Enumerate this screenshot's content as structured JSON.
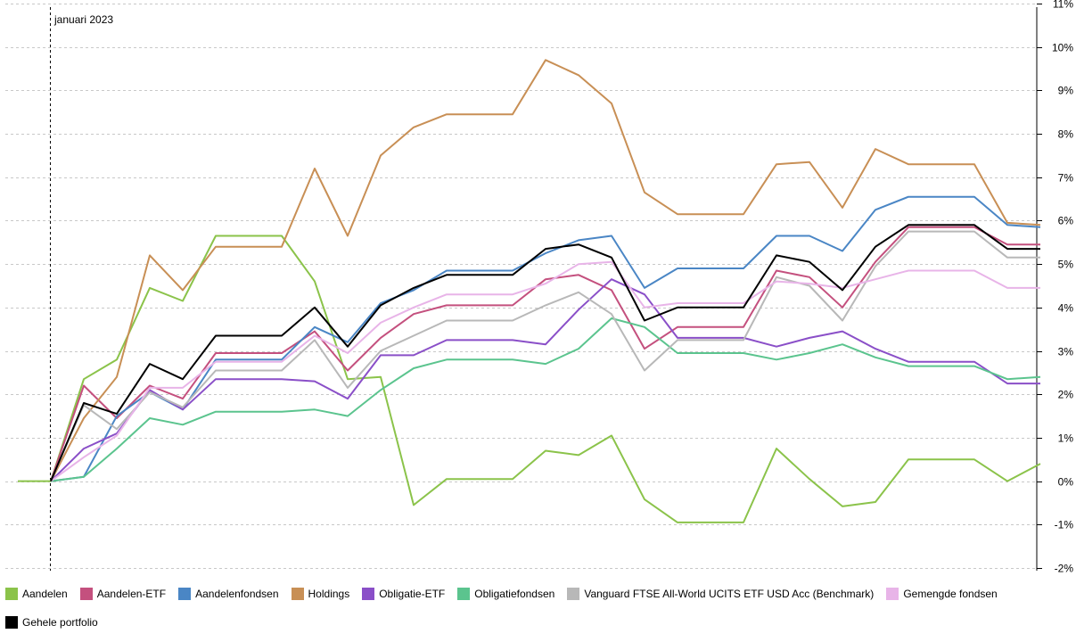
{
  "chart_data": {
    "type": "line",
    "x_marker_label": "januari 2023",
    "x_points": 31,
    "ylim": [
      -2,
      11
    ],
    "yticks": [
      "11%",
      "10%",
      "9%",
      "8%",
      "7%",
      "6%",
      "5%",
      "4%",
      "3%",
      "2%",
      "1%",
      "0%",
      "-1%",
      "-2%"
    ],
    "ytick_values": [
      11,
      10,
      9,
      8,
      7,
      6,
      5,
      4,
      3,
      2,
      1,
      0,
      -1,
      -2
    ],
    "grid": "horizontal dashed",
    "legend_position": "bottom",
    "series": [
      {
        "name": "Aandelen",
        "color": "#8bc34a",
        "start_index": 0,
        "values": [
          0,
          0,
          2.35,
          2.8,
          4.45,
          4.15,
          5.65,
          5.65,
          5.65,
          4.6,
          2.35,
          2.4,
          -0.55,
          0.05,
          0.05,
          0.05,
          0.7,
          0.6,
          1.05,
          -0.42,
          -0.95,
          -0.95,
          -0.95,
          0.75,
          0.05,
          -0.58,
          -0.48,
          0.5,
          0.5,
          0.5,
          0,
          0.4
        ]
      },
      {
        "name": "Aandelen-ETF",
        "color": "#c4507e",
        "start_index": 1,
        "values": [
          0,
          2.2,
          1.45,
          2.2,
          1.9,
          2.95,
          2.95,
          2.95,
          3.45,
          2.55,
          3.3,
          3.85,
          4.05,
          4.05,
          4.05,
          4.65,
          4.75,
          4.4,
          3.05,
          3.55,
          3.55,
          3.55,
          4.85,
          4.7,
          4.0,
          5.05,
          5.85,
          5.85,
          5.85,
          5.45,
          5.45
        ]
      },
      {
        "name": "Aandelenfondsen",
        "color": "#4a86c5",
        "start_index": 1,
        "values": [
          0,
          0.1,
          1.5,
          2.05,
          1.65,
          2.8,
          2.8,
          2.8,
          3.55,
          3.2,
          4.1,
          4.4,
          4.85,
          4.85,
          4.85,
          5.25,
          5.55,
          5.65,
          4.45,
          4.9,
          4.9,
          4.9,
          5.65,
          5.65,
          5.3,
          6.25,
          6.55,
          6.55,
          6.55,
          5.9,
          5.85
        ]
      },
      {
        "name": "Holdings",
        "color": "#c88f55",
        "start_index": 1,
        "values": [
          0,
          1.45,
          2.4,
          5.2,
          4.4,
          5.4,
          5.4,
          5.4,
          7.2,
          5.65,
          7.5,
          8.15,
          8.45,
          8.45,
          8.45,
          9.7,
          9.35,
          8.7,
          6.65,
          6.15,
          6.15,
          6.15,
          7.3,
          7.35,
          6.3,
          7.65,
          7.3,
          7.3,
          7.3,
          5.95,
          5.9
        ]
      },
      {
        "name": "Obligatie-ETF",
        "color": "#8a4fc8",
        "start_index": 1,
        "values": [
          0,
          0.75,
          1.1,
          2.1,
          1.65,
          2.35,
          2.35,
          2.35,
          2.3,
          1.9,
          2.9,
          2.9,
          3.25,
          3.25,
          3.25,
          3.15,
          3.95,
          4.65,
          4.3,
          3.3,
          3.3,
          3.3,
          3.1,
          3.3,
          3.45,
          3.05,
          2.75,
          2.75,
          2.75,
          2.25,
          2.25
        ]
      },
      {
        "name": "Obligatiefondsen",
        "color": "#5bc48e",
        "start_index": 1,
        "values": [
          0,
          0.1,
          0.75,
          1.45,
          1.3,
          1.6,
          1.6,
          1.6,
          1.65,
          1.5,
          2.1,
          2.6,
          2.8,
          2.8,
          2.8,
          2.7,
          3.05,
          3.75,
          3.55,
          2.95,
          2.95,
          2.95,
          2.8,
          2.95,
          3.15,
          2.85,
          2.65,
          2.65,
          2.65,
          2.35,
          2.4
        ]
      },
      {
        "name": "Vanguard FTSE All-World UCITS ETF USD Acc (Benchmark)",
        "color": "#b8b8b8",
        "start_index": 1,
        "values": [
          0,
          1.75,
          1.2,
          2.05,
          1.7,
          2.55,
          2.55,
          2.55,
          3.25,
          2.15,
          3.0,
          3.35,
          3.7,
          3.7,
          3.7,
          4.05,
          4.35,
          3.85,
          2.55,
          3.25,
          3.25,
          3.25,
          4.7,
          4.5,
          3.7,
          4.95,
          5.75,
          5.75,
          5.75,
          5.15,
          5.15
        ]
      },
      {
        "name": "Gemengde fondsen",
        "color": "#e8b4e8",
        "start_index": 1,
        "values": [
          0,
          0.55,
          1.05,
          2.15,
          2.15,
          2.75,
          2.75,
          2.75,
          3.35,
          2.95,
          3.65,
          4.0,
          4.3,
          4.3,
          4.3,
          4.55,
          5.0,
          5.05,
          4.0,
          4.1,
          4.1,
          4.1,
          4.6,
          4.55,
          4.45,
          4.65,
          4.85,
          4.85,
          4.85,
          4.45,
          4.45
        ]
      },
      {
        "name": "Gehele portfolio",
        "color": "#000000",
        "start_index": 1,
        "values": [
          0,
          1.8,
          1.55,
          2.7,
          2.35,
          3.35,
          3.35,
          3.35,
          4.0,
          3.1,
          4.05,
          4.45,
          4.75,
          4.75,
          4.75,
          5.35,
          5.45,
          5.15,
          3.7,
          4.0,
          4.0,
          4.0,
          5.2,
          5.05,
          4.4,
          5.4,
          5.9,
          5.9,
          5.9,
          5.35,
          5.35
        ]
      }
    ]
  }
}
